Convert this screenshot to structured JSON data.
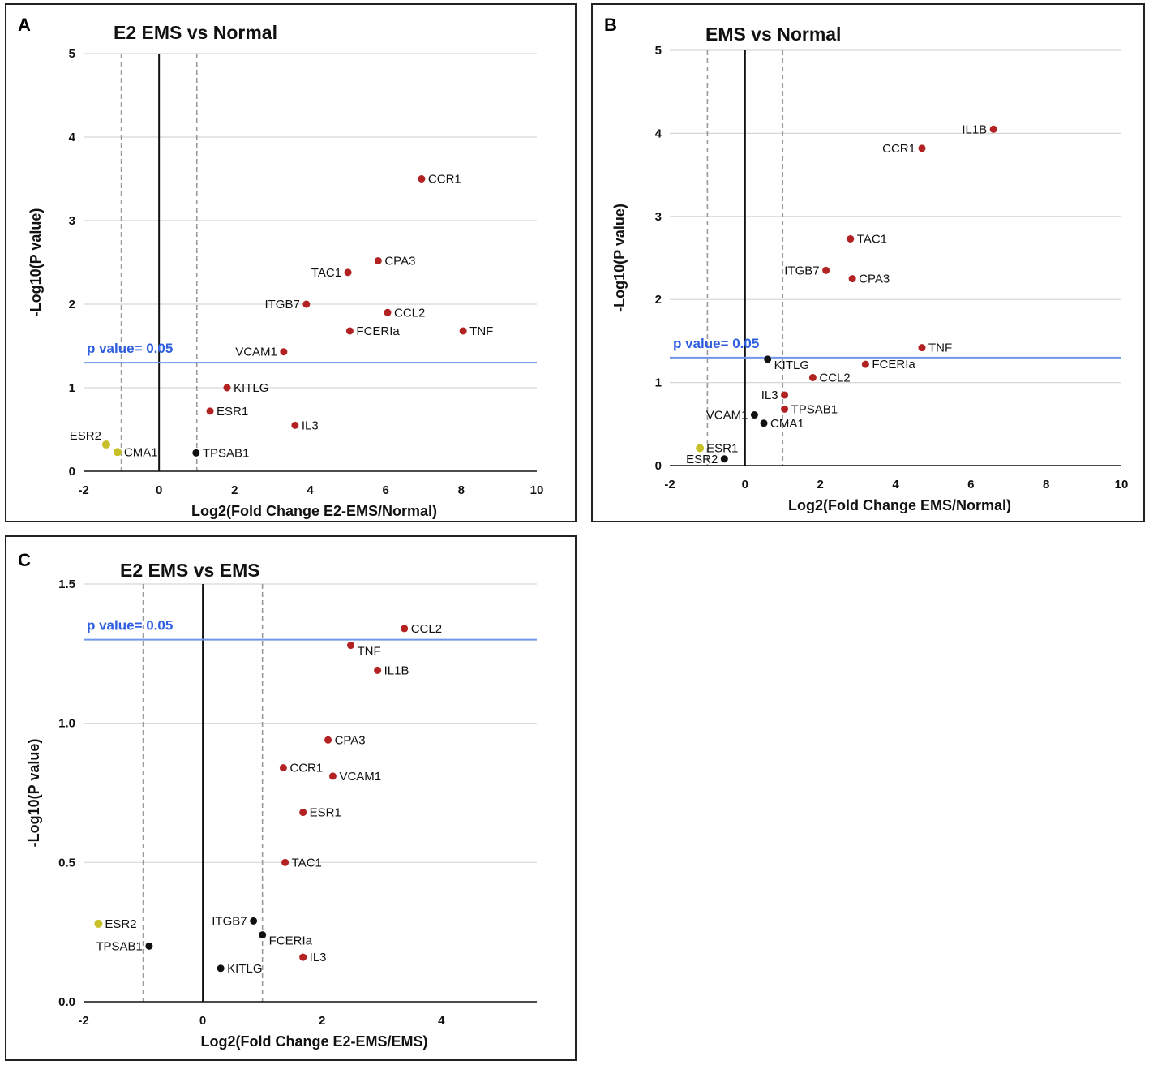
{
  "colors": {
    "red": "#b22222",
    "yellow": "#c8c028",
    "black": "#111111",
    "pline": "#6f96e8",
    "grid": "#d6d6d6",
    "vdash": "#9a9a9a"
  },
  "chart_data": [
    {
      "id": "A",
      "type": "scatter",
      "title": "E2 EMS vs Normal",
      "xlabel": "Log2(Fold Change E2-EMS/Normal)",
      "ylabel": "-Log10(P value)",
      "xlim": [
        -2,
        10
      ],
      "ylim": [
        0,
        5
      ],
      "xticks": [
        -2,
        0,
        2,
        4,
        6,
        8,
        10
      ],
      "yticks": [
        0,
        1,
        2,
        3,
        4,
        5
      ],
      "threshold_label": "p value= 0.05",
      "threshold_y": 1.3,
      "fold_cutoffs": [
        -1,
        1
      ],
      "points": [
        {
          "label": "CCR1",
          "x": 6.95,
          "y": 3.5,
          "color": "red",
          "pos": "right"
        },
        {
          "label": "CPA3",
          "x": 5.8,
          "y": 2.52,
          "color": "red",
          "pos": "right"
        },
        {
          "label": "TAC1",
          "x": 5.0,
          "y": 2.38,
          "color": "red",
          "pos": "left"
        },
        {
          "label": "ITGB7",
          "x": 3.9,
          "y": 2.0,
          "color": "red",
          "pos": "left"
        },
        {
          "label": "CCL2",
          "x": 6.05,
          "y": 1.9,
          "color": "red",
          "pos": "right"
        },
        {
          "label": "FCERIa",
          "x": 5.05,
          "y": 1.68,
          "color": "red",
          "pos": "right"
        },
        {
          "label": "TNF",
          "x": 8.05,
          "y": 1.68,
          "color": "red",
          "pos": "right"
        },
        {
          "label": "VCAM1",
          "x": 3.3,
          "y": 1.43,
          "color": "red",
          "pos": "left"
        },
        {
          "label": "KITLG",
          "x": 1.8,
          "y": 1.0,
          "color": "red",
          "pos": "right"
        },
        {
          "label": "ESR1",
          "x": 1.35,
          "y": 0.72,
          "color": "red",
          "pos": "right"
        },
        {
          "label": "IL3",
          "x": 3.6,
          "y": 0.55,
          "color": "red",
          "pos": "right"
        },
        {
          "label": "ESR2",
          "x": -1.4,
          "y": 0.32,
          "color": "yellow",
          "pos": "upleft"
        },
        {
          "label": "CMA1",
          "x": -1.1,
          "y": 0.23,
          "color": "yellow",
          "pos": "right"
        },
        {
          "label": "TPSAB1",
          "x": 0.98,
          "y": 0.22,
          "color": "black",
          "pos": "right"
        }
      ]
    },
    {
      "id": "B",
      "type": "scatter",
      "title": "EMS vs Normal",
      "xlabel": "Log2(Fold Change EMS/Normal)",
      "ylabel": "-Log10(P value)",
      "xlim": [
        -2,
        10
      ],
      "ylim": [
        0,
        5
      ],
      "xticks": [
        -2,
        0,
        2,
        4,
        6,
        8,
        10
      ],
      "yticks": [
        0,
        1,
        2,
        3,
        4,
        5
      ],
      "threshold_label": "p value= 0.05",
      "threshold_y": 1.3,
      "fold_cutoffs": [
        -1,
        1
      ],
      "points": [
        {
          "label": "IL1B",
          "x": 6.6,
          "y": 4.05,
          "color": "red",
          "pos": "left"
        },
        {
          "label": "CCR1",
          "x": 4.7,
          "y": 3.82,
          "color": "red",
          "pos": "left"
        },
        {
          "label": "TAC1",
          "x": 2.8,
          "y": 2.73,
          "color": "red",
          "pos": "right"
        },
        {
          "label": "ITGB7",
          "x": 2.15,
          "y": 2.35,
          "color": "red",
          "pos": "left"
        },
        {
          "label": "CPA3",
          "x": 2.85,
          "y": 2.25,
          "color": "red",
          "pos": "right"
        },
        {
          "label": "TNF",
          "x": 4.7,
          "y": 1.42,
          "color": "red",
          "pos": "right"
        },
        {
          "label": "KITLG",
          "x": 0.6,
          "y": 1.28,
          "color": "black",
          "pos": "belowright"
        },
        {
          "label": "FCERIa",
          "x": 3.2,
          "y": 1.22,
          "color": "red",
          "pos": "right"
        },
        {
          "label": "CCL2",
          "x": 1.8,
          "y": 1.06,
          "color": "red",
          "pos": "right"
        },
        {
          "label": "IL3",
          "x": 1.05,
          "y": 0.85,
          "color": "red",
          "pos": "left"
        },
        {
          "label": "TPSAB1",
          "x": 1.05,
          "y": 0.68,
          "color": "red",
          "pos": "right"
        },
        {
          "label": "VCAM1",
          "x": 0.25,
          "y": 0.61,
          "color": "black",
          "pos": "left"
        },
        {
          "label": "CMA1",
          "x": 0.5,
          "y": 0.51,
          "color": "black",
          "pos": "right"
        },
        {
          "label": "ESR1",
          "x": -1.2,
          "y": 0.21,
          "color": "yellow",
          "pos": "right"
        },
        {
          "label": "ESR2",
          "x": -0.55,
          "y": 0.08,
          "color": "black",
          "pos": "left"
        }
      ]
    },
    {
      "id": "C",
      "type": "scatter",
      "title": "E2 EMS vs EMS",
      "xlabel": "Log2(Fold Change E2-EMS/EMS)",
      "ylabel": "-Log10(P value)",
      "xlim": [
        -2,
        5.6
      ],
      "ylim": [
        0,
        1.5
      ],
      "xticks": [
        -2,
        0,
        2,
        4
      ],
      "yticks": [
        0.0,
        0.5,
        1.0,
        1.5
      ],
      "threshold_label": "p value= 0.05",
      "threshold_y": 1.3,
      "fold_cutoffs": [
        -1,
        1
      ],
      "points": [
        {
          "label": "CCL2",
          "x": 3.38,
          "y": 1.34,
          "color": "red",
          "pos": "right"
        },
        {
          "label": "TNF",
          "x": 2.48,
          "y": 1.28,
          "color": "red",
          "pos": "belowright"
        },
        {
          "label": "IL1B",
          "x": 2.93,
          "y": 1.19,
          "color": "red",
          "pos": "right"
        },
        {
          "label": "CPA3",
          "x": 2.1,
          "y": 0.94,
          "color": "red",
          "pos": "right"
        },
        {
          "label": "CCR1",
          "x": 1.35,
          "y": 0.84,
          "color": "red",
          "pos": "right"
        },
        {
          "label": "VCAM1",
          "x": 2.18,
          "y": 0.81,
          "color": "red",
          "pos": "right"
        },
        {
          "label": "ESR1",
          "x": 1.68,
          "y": 0.68,
          "color": "red",
          "pos": "right"
        },
        {
          "label": "TAC1",
          "x": 1.38,
          "y": 0.5,
          "color": "red",
          "pos": "right"
        },
        {
          "label": "ITGB7",
          "x": 0.85,
          "y": 0.29,
          "color": "black",
          "pos": "left"
        },
        {
          "label": "FCERIa",
          "x": 1.0,
          "y": 0.24,
          "color": "black",
          "pos": "belowright"
        },
        {
          "label": "IL3",
          "x": 1.68,
          "y": 0.16,
          "color": "red",
          "pos": "right"
        },
        {
          "label": "KITLG",
          "x": 0.3,
          "y": 0.12,
          "color": "black",
          "pos": "right"
        },
        {
          "label": "ESR2",
          "x": -1.75,
          "y": 0.28,
          "color": "yellow",
          "pos": "right"
        },
        {
          "label": "TPSAB1",
          "x": -0.9,
          "y": 0.2,
          "color": "black",
          "pos": "left"
        }
      ]
    }
  ]
}
